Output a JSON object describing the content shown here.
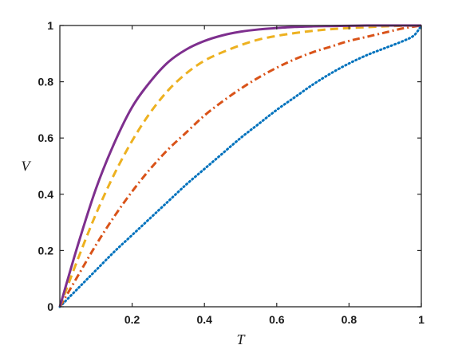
{
  "chart_data": {
    "type": "line",
    "title": "",
    "xlabel": "T",
    "ylabel": "V",
    "xlim": [
      0,
      1
    ],
    "ylim": [
      0,
      1
    ],
    "xticks": [
      0.2,
      0.4,
      0.6,
      0.8,
      1
    ],
    "xtick_labels": [
      "0.2",
      "0.4",
      "0.6",
      "0.8",
      "1"
    ],
    "yticks": [
      0,
      0.2,
      0.4,
      0.6,
      0.8,
      1
    ],
    "ytick_labels": [
      "0",
      "0.2",
      "0.4",
      "0.6",
      "0.8",
      "1"
    ],
    "grid": false,
    "box": true,
    "series": [
      {
        "style": "dotted",
        "color": "#0072BD",
        "x": [
          0,
          0.05,
          0.1,
          0.15,
          0.2,
          0.25,
          0.3,
          0.35,
          0.4,
          0.45,
          0.5,
          0.55,
          0.6,
          0.65,
          0.7,
          0.75,
          0.8,
          0.85,
          0.9,
          0.95,
          0.98,
          1
        ],
        "y": [
          0,
          0.065,
          0.13,
          0.195,
          0.255,
          0.315,
          0.375,
          0.435,
          0.49,
          0.545,
          0.6,
          0.65,
          0.7,
          0.745,
          0.79,
          0.83,
          0.865,
          0.895,
          0.92,
          0.945,
          0.965,
          1
        ]
      },
      {
        "style": "dashdot",
        "color": "#D95319",
        "x": [
          0,
          0.05,
          0.1,
          0.15,
          0.2,
          0.25,
          0.3,
          0.35,
          0.4,
          0.45,
          0.5,
          0.55,
          0.6,
          0.65,
          0.7,
          0.75,
          0.8,
          0.85,
          0.9,
          0.95,
          1
        ],
        "y": [
          0,
          0.11,
          0.22,
          0.32,
          0.41,
          0.49,
          0.56,
          0.62,
          0.68,
          0.73,
          0.775,
          0.815,
          0.85,
          0.88,
          0.905,
          0.925,
          0.945,
          0.96,
          0.975,
          0.99,
          1
        ]
      },
      {
        "style": "dashed",
        "color": "#EDB120",
        "x": [
          0,
          0.05,
          0.1,
          0.15,
          0.2,
          0.25,
          0.3,
          0.35,
          0.4,
          0.45,
          0.5,
          0.55,
          0.6,
          0.65,
          0.7,
          0.75,
          0.8,
          0.85,
          0.9,
          0.95,
          1
        ],
        "y": [
          0,
          0.17,
          0.33,
          0.47,
          0.59,
          0.69,
          0.77,
          0.83,
          0.875,
          0.905,
          0.93,
          0.95,
          0.963,
          0.973,
          0.981,
          0.987,
          0.991,
          0.994,
          0.997,
          0.999,
          1
        ]
      },
      {
        "style": "solid",
        "color": "#7E2F8E",
        "x": [
          0,
          0.05,
          0.1,
          0.15,
          0.2,
          0.25,
          0.3,
          0.35,
          0.4,
          0.45,
          0.5,
          0.55,
          0.6,
          0.65,
          0.7,
          0.75,
          0.8,
          0.85,
          0.9,
          0.95,
          1
        ],
        "y": [
          0,
          0.22,
          0.42,
          0.58,
          0.71,
          0.8,
          0.87,
          0.915,
          0.945,
          0.965,
          0.978,
          0.986,
          0.991,
          0.995,
          0.997,
          0.998,
          0.999,
          1,
          1,
          1,
          1
        ]
      }
    ]
  }
}
